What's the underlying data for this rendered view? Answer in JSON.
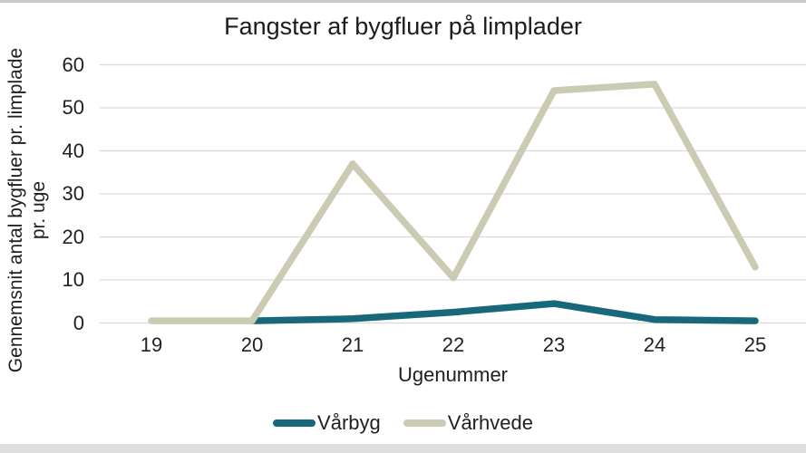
{
  "window": {
    "background": "#ffffff",
    "top_strip_color": "#c9c9c9",
    "bottom_strip_color": "#dedede"
  },
  "chart_data": {
    "type": "line",
    "title": "Fangster af bygfluer på limplader",
    "xlabel": "Ugenummer",
    "ylabel": "Gennemsnit antal bygfluer pr. limplade pr. uge",
    "ylabel_lines": [
      "Gennemsnit antal bygfluer pr. limplade",
      "pr. uge"
    ],
    "categories": [
      "19",
      "20",
      "21",
      "22",
      "23",
      "24",
      "25"
    ],
    "series": [
      {
        "name": "Vårbyg",
        "color": "#17697a",
        "values": [
          null,
          0.5,
          1,
          2.5,
          4.5,
          0.8,
          0.5
        ]
      },
      {
        "name": "Vårhvede",
        "color": "#cbcbb3",
        "values": [
          0.5,
          0.5,
          37,
          10.5,
          54,
          55.5,
          13
        ]
      }
    ],
    "ylim": [
      0,
      60
    ],
    "yticks": [
      0,
      10,
      20,
      30,
      40,
      50,
      60
    ],
    "grid": true,
    "gridline_color": "#d9d9d9",
    "text_color": "#212121",
    "line_width": 7.5,
    "legend_position": "bottom"
  }
}
